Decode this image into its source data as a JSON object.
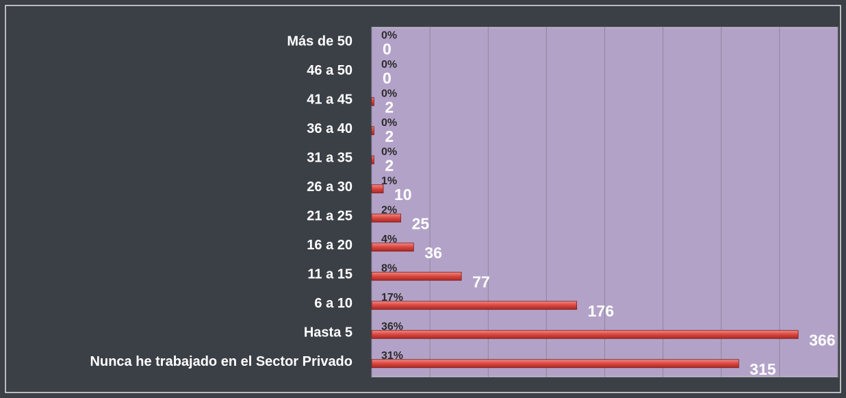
{
  "chart_data": {
    "type": "hbar",
    "categories": [
      "Más de 50",
      "46 a 50",
      "41 a 45",
      "36 a 40",
      "31 a 35",
      "26 a 30",
      "21 a 25",
      "16 a 20",
      "11 a 15",
      "6 a 10",
      "Hasta 5",
      "Nunca he trabajado en el Sector Privado"
    ],
    "values": [
      0,
      0,
      2,
      2,
      2,
      10,
      25,
      36,
      77,
      176,
      366,
      315
    ],
    "percent_labels": [
      "0%",
      "0%",
      "0%",
      "0%",
      "0%",
      "1%",
      "2%",
      "4%",
      "8%",
      "17%",
      "36%",
      "31%"
    ],
    "color": "#e0504a",
    "xlim": [
      0,
      400
    ],
    "xticks": [
      0,
      50,
      100,
      150,
      200,
      250,
      300,
      350,
      400
    ],
    "grid": true
  }
}
